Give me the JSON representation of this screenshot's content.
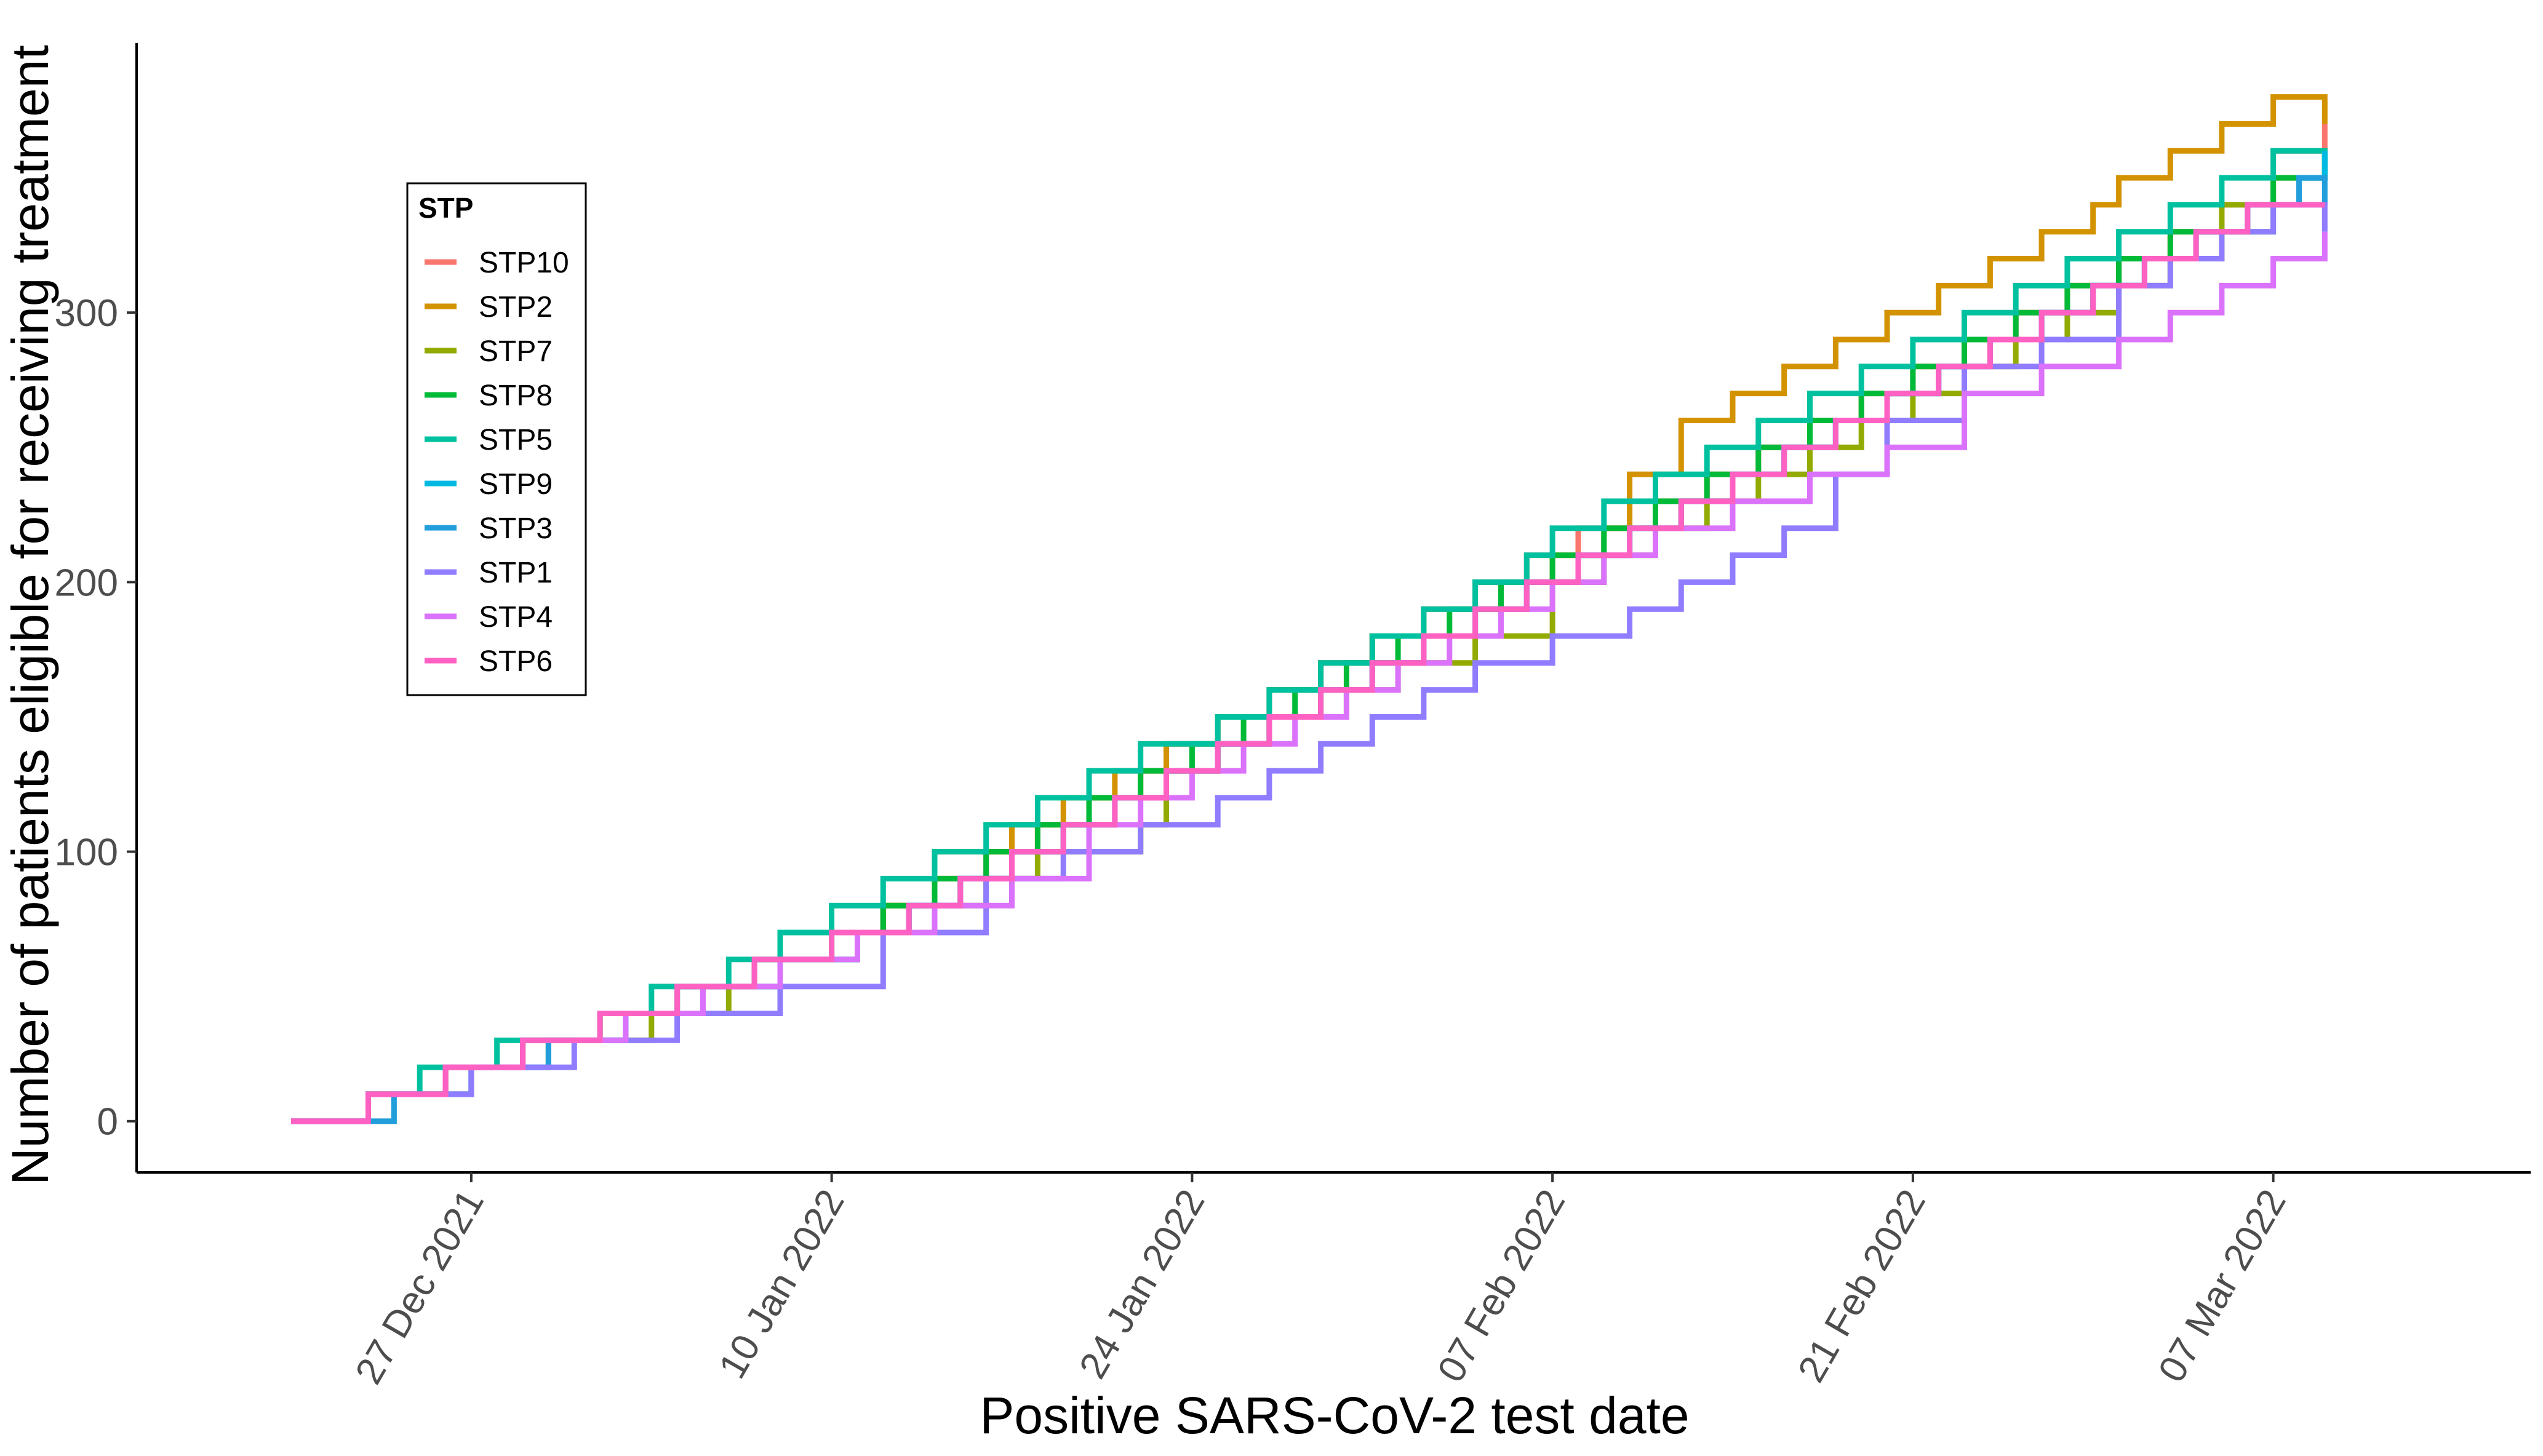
{
  "chart_data": {
    "type": "line",
    "step": true,
    "xlabel": "Positive SARS-CoV-2 test date",
    "ylabel": "Number of patients eligible for receiving treatment",
    "x_tick_labels": [
      "27 Dec 2021",
      "10 Jan 2022",
      "24 Jan 2022",
      "07 Feb 2022",
      "21 Feb 2022",
      "07 Mar 2022"
    ],
    "x_tick_dates": [
      "2021-12-27",
      "2022-01-10",
      "2022-01-24",
      "2022-02-07",
      "2022-02-21",
      "2022-03-07"
    ],
    "xlim": [
      "2021-12-14",
      "2022-03-17"
    ],
    "y_ticks": [
      0,
      100,
      200,
      300
    ],
    "ylim": [
      -19,
      400
    ],
    "grid": false,
    "legend": {
      "title": "STP",
      "placement": "top-left"
    },
    "colors": {
      "STP10": "#F8766D",
      "STP2": "#D39200",
      "STP7": "#93AA00",
      "STP8": "#00BA38",
      "STP5": "#00C19F",
      "STP9": "#00B9E3",
      "STP3": "#219EDB",
      "STP1": "#8F7CFF",
      "STP4": "#DB72FB",
      "STP6": "#FF61C3"
    },
    "series": [
      {
        "name": "STP10",
        "x": [
          "2021-12-20",
          "2021-12-23",
          "2021-12-26",
          "2021-12-29",
          "2022-01-01",
          "2022-01-04",
          "2022-01-07",
          "2022-01-10",
          "2022-01-12",
          "2022-01-14",
          "2022-01-16",
          "2022-01-18",
          "2022-01-20",
          "2022-01-22",
          "2022-01-23",
          "2022-01-25",
          "2022-01-27",
          "2022-01-29",
          "2022-01-31",
          "2022-02-02",
          "2022-02-04",
          "2022-02-06",
          "2022-02-08",
          "2022-02-11",
          "2022-02-13",
          "2022-02-15",
          "2022-02-17",
          "2022-02-19",
          "2022-02-21",
          "2022-02-23",
          "2022-02-25",
          "2022-02-27",
          "2022-03-01",
          "2022-03-03",
          "2022-03-05",
          "2022-03-07",
          "2022-03-09"
        ],
        "y": [
          0,
          10,
          20,
          30,
          40,
          50,
          60,
          70,
          80,
          90,
          100,
          110,
          120,
          130,
          140,
          150,
          160,
          170,
          180,
          190,
          200,
          210,
          220,
          230,
          240,
          250,
          260,
          270,
          280,
          290,
          300,
          310,
          320,
          330,
          340,
          360,
          370
        ]
      },
      {
        "name": "STP2",
        "x": [
          "2021-12-20",
          "2021-12-23",
          "2021-12-26",
          "2021-12-30",
          "2022-01-02",
          "2022-01-05",
          "2022-01-08",
          "2022-01-11",
          "2022-01-12",
          "2022-01-14",
          "2022-01-17",
          "2022-01-19",
          "2022-01-21",
          "2022-01-23",
          "2022-01-25",
          "2022-01-27",
          "2022-01-29",
          "2022-01-31",
          "2022-02-02",
          "2022-02-05",
          "2022-02-07",
          "2022-02-09",
          "2022-02-10",
          "2022-02-12",
          "2022-02-14",
          "2022-02-16",
          "2022-02-18",
          "2022-02-20",
          "2022-02-22",
          "2022-02-24",
          "2022-02-26",
          "2022-02-28",
          "2022-03-01",
          "2022-03-03",
          "2022-03-05",
          "2022-03-07",
          "2022-03-09"
        ],
        "y": [
          0,
          10,
          20,
          30,
          40,
          50,
          60,
          70,
          80,
          100,
          110,
          120,
          130,
          140,
          150,
          160,
          170,
          180,
          190,
          200,
          210,
          220,
          240,
          260,
          270,
          280,
          290,
          300,
          310,
          320,
          330,
          340,
          350,
          360,
          370,
          380,
          370
        ]
      },
      {
        "name": "STP7",
        "x": [
          "2021-12-20",
          "2021-12-23",
          "2021-12-27",
          "2021-12-30",
          "2022-01-03",
          "2022-01-06",
          "2022-01-08",
          "2022-01-11",
          "2022-01-13",
          "2022-01-16",
          "2022-01-18",
          "2022-01-22",
          "2022-01-23",
          "2022-01-25",
          "2022-01-27",
          "2022-01-30",
          "2022-02-01",
          "2022-02-04",
          "2022-02-07",
          "2022-02-09",
          "2022-02-11",
          "2022-02-13",
          "2022-02-15",
          "2022-02-17",
          "2022-02-19",
          "2022-02-21",
          "2022-02-23",
          "2022-02-25",
          "2022-02-27",
          "2022-03-01",
          "2022-03-03",
          "2022-03-05",
          "2022-03-07",
          "2022-03-09"
        ],
        "y": [
          0,
          10,
          20,
          30,
          40,
          50,
          60,
          70,
          80,
          90,
          100,
          110,
          130,
          140,
          150,
          160,
          170,
          180,
          200,
          210,
          220,
          230,
          240,
          250,
          260,
          270,
          280,
          290,
          300,
          310,
          320,
          340,
          350,
          360
        ]
      },
      {
        "name": "STP8",
        "x": [
          "2021-12-20",
          "2021-12-23",
          "2021-12-26",
          "2021-12-29",
          "2022-01-01",
          "2022-01-04",
          "2022-01-07",
          "2022-01-10",
          "2022-01-12",
          "2022-01-14",
          "2022-01-16",
          "2022-01-18",
          "2022-01-20",
          "2022-01-22",
          "2022-01-24",
          "2022-01-26",
          "2022-01-28",
          "2022-01-30",
          "2022-02-01",
          "2022-02-03",
          "2022-02-05",
          "2022-02-07",
          "2022-02-09",
          "2022-02-11",
          "2022-02-13",
          "2022-02-15",
          "2022-02-17",
          "2022-02-19",
          "2022-02-21",
          "2022-02-23",
          "2022-02-25",
          "2022-02-27",
          "2022-03-01",
          "2022-03-03",
          "2022-03-07",
          "2022-03-09"
        ],
        "y": [
          0,
          10,
          20,
          30,
          40,
          50,
          60,
          70,
          80,
          90,
          100,
          110,
          120,
          130,
          140,
          150,
          160,
          170,
          180,
          190,
          200,
          210,
          220,
          230,
          240,
          250,
          260,
          270,
          280,
          290,
          300,
          310,
          320,
          330,
          350,
          360
        ]
      },
      {
        "name": "STP5",
        "x": [
          "2021-12-20",
          "2021-12-23",
          "2021-12-25",
          "2021-12-28",
          "2022-01-01",
          "2022-01-03",
          "2022-01-06",
          "2022-01-08",
          "2022-01-10",
          "2022-01-12",
          "2022-01-14",
          "2022-01-16",
          "2022-01-18",
          "2022-01-20",
          "2022-01-22",
          "2022-01-25",
          "2022-01-27",
          "2022-01-29",
          "2022-01-31",
          "2022-02-02",
          "2022-02-04",
          "2022-02-06",
          "2022-02-07",
          "2022-02-09",
          "2022-02-11",
          "2022-02-13",
          "2022-02-15",
          "2022-02-17",
          "2022-02-19",
          "2022-02-21",
          "2022-02-23",
          "2022-02-25",
          "2022-02-27",
          "2022-03-01",
          "2022-03-03",
          "2022-03-05",
          "2022-03-07",
          "2022-03-09"
        ],
        "y": [
          0,
          10,
          20,
          30,
          40,
          50,
          60,
          70,
          80,
          90,
          100,
          110,
          120,
          130,
          140,
          150,
          160,
          170,
          180,
          190,
          200,
          210,
          220,
          230,
          240,
          250,
          260,
          270,
          280,
          290,
          300,
          310,
          320,
          330,
          340,
          350,
          360,
          350
        ]
      },
      {
        "name": "STP9",
        "x": [
          "2021-12-20",
          "2021-12-23",
          "2021-12-27",
          "2021-12-30",
          "2022-01-02",
          "2022-01-05",
          "2022-01-08",
          "2022-01-11",
          "2022-01-13",
          "2022-01-15",
          "2022-01-17",
          "2022-01-19",
          "2022-01-21",
          "2022-01-23",
          "2022-01-25",
          "2022-01-27",
          "2022-01-29",
          "2022-01-31",
          "2022-02-02",
          "2022-02-04",
          "2022-02-06",
          "2022-02-08",
          "2022-02-10",
          "2022-02-12",
          "2022-02-14",
          "2022-02-16",
          "2022-02-18",
          "2022-02-20",
          "2022-02-22",
          "2022-02-24",
          "2022-02-26",
          "2022-02-28",
          "2022-03-02",
          "2022-03-04",
          "2022-03-06",
          "2022-03-08",
          "2022-03-09"
        ],
        "y": [
          0,
          10,
          20,
          30,
          40,
          50,
          60,
          70,
          80,
          90,
          100,
          110,
          120,
          130,
          140,
          150,
          160,
          170,
          180,
          190,
          200,
          210,
          220,
          230,
          240,
          250,
          260,
          270,
          280,
          290,
          300,
          310,
          320,
          330,
          340,
          350,
          360
        ]
      },
      {
        "name": "STP3",
        "x": [
          "2021-12-20",
          "2021-12-24",
          "2021-12-27",
          "2021-12-30",
          "2022-01-02",
          "2022-01-04",
          "2022-01-08",
          "2022-01-11",
          "2022-01-13",
          "2022-01-15",
          "2022-01-17",
          "2022-01-19",
          "2022-01-21",
          "2022-01-23",
          "2022-01-25",
          "2022-01-27",
          "2022-01-29",
          "2022-01-31",
          "2022-02-02",
          "2022-02-04",
          "2022-02-06",
          "2022-02-08",
          "2022-02-10",
          "2022-02-12",
          "2022-02-14",
          "2022-02-16",
          "2022-02-18",
          "2022-02-20",
          "2022-02-22",
          "2022-02-24",
          "2022-02-26",
          "2022-02-28",
          "2022-03-02",
          "2022-03-04",
          "2022-03-06",
          "2022-03-08",
          "2022-03-09"
        ],
        "y": [
          0,
          10,
          20,
          30,
          40,
          50,
          60,
          70,
          80,
          90,
          100,
          110,
          120,
          130,
          140,
          150,
          160,
          170,
          180,
          190,
          200,
          210,
          220,
          230,
          240,
          250,
          260,
          270,
          280,
          290,
          300,
          310,
          320,
          330,
          340,
          350,
          340
        ]
      },
      {
        "name": "STP1",
        "x": [
          "2021-12-20",
          "2021-12-23",
          "2021-12-27",
          "2021-12-31",
          "2022-01-04",
          "2022-01-08",
          "2022-01-12",
          "2022-01-16",
          "2022-01-19",
          "2022-01-22",
          "2022-01-25",
          "2022-01-27",
          "2022-01-29",
          "2022-01-31",
          "2022-02-02",
          "2022-02-04",
          "2022-02-07",
          "2022-02-10",
          "2022-02-12",
          "2022-02-14",
          "2022-02-16",
          "2022-02-18",
          "2022-02-20",
          "2022-02-23",
          "2022-02-26",
          "2022-03-01",
          "2022-03-03",
          "2022-03-05",
          "2022-03-07",
          "2022-03-09"
        ],
        "y": [
          0,
          10,
          20,
          30,
          40,
          50,
          70,
          90,
          100,
          110,
          120,
          130,
          140,
          150,
          160,
          170,
          180,
          190,
          200,
          210,
          220,
          240,
          260,
          280,
          290,
          310,
          320,
          330,
          340,
          330
        ]
      },
      {
        "name": "STP4",
        "x": [
          "2021-12-20",
          "2021-12-23",
          "2021-12-26",
          "2021-12-29",
          "2022-01-02",
          "2022-01-05",
          "2022-01-08",
          "2022-01-11",
          "2022-01-14",
          "2022-01-17",
          "2022-01-20",
          "2022-01-22",
          "2022-01-24",
          "2022-01-26",
          "2022-01-28",
          "2022-01-30",
          "2022-02-01",
          "2022-02-03",
          "2022-02-05",
          "2022-02-07",
          "2022-02-09",
          "2022-02-11",
          "2022-02-14",
          "2022-02-17",
          "2022-02-20",
          "2022-02-23",
          "2022-02-26",
          "2022-03-01",
          "2022-03-03",
          "2022-03-05",
          "2022-03-07",
          "2022-03-09"
        ],
        "y": [
          0,
          10,
          20,
          30,
          40,
          50,
          60,
          70,
          80,
          90,
          110,
          120,
          130,
          140,
          150,
          160,
          170,
          180,
          190,
          200,
          210,
          220,
          230,
          240,
          250,
          270,
          280,
          290,
          300,
          310,
          320,
          330
        ]
      },
      {
        "name": "STP6",
        "x": [
          "2021-12-20",
          "2021-12-23",
          "2021-12-26",
          "2021-12-29",
          "2022-01-01",
          "2022-01-04",
          "2022-01-07",
          "2022-01-10",
          "2022-01-13",
          "2022-01-15",
          "2022-01-17",
          "2022-01-19",
          "2022-01-21",
          "2022-01-23",
          "2022-01-25",
          "2022-01-27",
          "2022-01-29",
          "2022-01-31",
          "2022-02-02",
          "2022-02-04",
          "2022-02-06",
          "2022-02-08",
          "2022-02-10",
          "2022-02-12",
          "2022-02-14",
          "2022-02-16",
          "2022-02-18",
          "2022-02-20",
          "2022-02-22",
          "2022-02-24",
          "2022-02-26",
          "2022-02-28",
          "2022-03-02",
          "2022-03-04",
          "2022-03-06",
          "2022-03-09"
        ],
        "y": [
          0,
          10,
          20,
          30,
          40,
          50,
          60,
          70,
          80,
          90,
          100,
          110,
          120,
          130,
          140,
          150,
          160,
          170,
          180,
          190,
          200,
          210,
          220,
          230,
          240,
          250,
          260,
          270,
          280,
          290,
          300,
          310,
          320,
          330,
          340,
          340
        ]
      }
    ]
  }
}
